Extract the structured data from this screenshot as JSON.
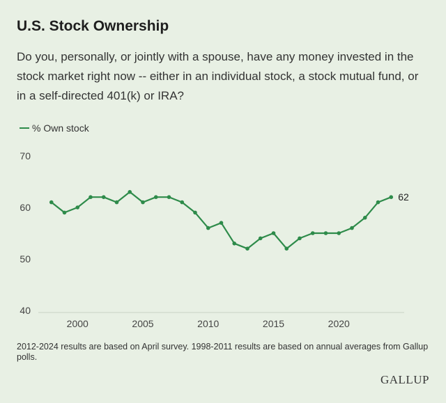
{
  "chart_data": {
    "type": "line",
    "title": "U.S. Stock Ownership",
    "subtitle": "Do you, personally, or jointly with a spouse, have any money invested in the stock market right now -- either in an individual stock, a stock mutual fund, or in a self-directed 401(k) or IRA?",
    "xlabel": "",
    "ylabel": "",
    "ylim": [
      40,
      70
    ],
    "xlim": [
      1997,
      2025
    ],
    "yticks": [
      40,
      50,
      60,
      70
    ],
    "xticks": [
      2000,
      2005,
      2010,
      2015,
      2020
    ],
    "grid": false,
    "legend_position": "top-left",
    "series": [
      {
        "name": "% Own stock",
        "color": "#2e8b4a",
        "x": [
          1998,
          1999,
          2000,
          2001,
          2002,
          2003,
          2004,
          2005,
          2006,
          2007,
          2008,
          2009,
          2010,
          2011,
          2012,
          2013,
          2014,
          2015,
          2016,
          2017,
          2018,
          2019,
          2020,
          2021,
          2022,
          2023,
          2024
        ],
        "values": [
          61,
          59,
          60,
          62,
          62,
          61,
          63,
          61,
          62,
          62,
          61,
          59,
          56,
          57,
          53,
          52,
          54,
          55,
          52,
          54,
          55,
          55,
          55,
          56,
          58,
          61,
          62
        ]
      }
    ],
    "end_label": "62"
  },
  "footnote": "2012-2024 results are based on April survey. 1998-2011 results are based on annual averages from Gallup polls.",
  "brand": "GALLUP",
  "colors": {
    "background": "#e8f0e4",
    "line": "#2e8b4a",
    "baseline": "#c8d2c4"
  }
}
